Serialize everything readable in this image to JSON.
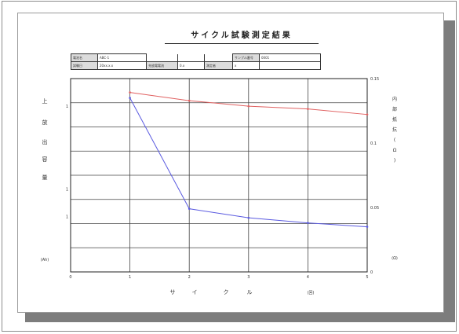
{
  "report": {
    "title": "サイクル試験測定結果",
    "info": {
      "row1": {
        "k1": "電池名",
        "v1": "ABC-1",
        "k2": "サンプル番号",
        "v2": "0001"
      },
      "row2": {
        "k1": "試験日",
        "v1": "20xx.x.x",
        "k2": "充放電電流",
        "v2": "0.x",
        "k3": "測定者",
        "v3": "x"
      }
    }
  },
  "chart_data": {
    "type": "line",
    "x": [
      1,
      2,
      3,
      4,
      5
    ],
    "xlim": [
      0,
      5
    ],
    "xticks": [
      "0",
      "1",
      "2",
      "3",
      "4",
      "5"
    ],
    "xlabel_chars": [
      "サ",
      "イ",
      "ク",
      "ル"
    ],
    "xlabel_extra": "(回)",
    "ylim_left": [
      10,
      17
    ],
    "ylim_right": [
      0,
      0.15
    ],
    "ylabel_left_chars": [
      "上",
      "放",
      "出",
      "容",
      "量"
    ],
    "ylabel_left_unit": "(Ah)",
    "ylabel_right_chars": [
      "内",
      "部",
      "抵",
      "抗",
      "(",
      "Ω",
      ")"
    ],
    "ylabel_right_unit": "(Ω)",
    "left_ticks": [
      {
        "value": 16,
        "label": "1"
      },
      {
        "value": 13,
        "label": "1"
      },
      {
        "value": 12,
        "label": "1"
      }
    ],
    "right_ticks": [
      {
        "value": 0.15,
        "label": "0.15"
      },
      {
        "value": 0.1,
        "label": "0.1"
      },
      {
        "value": 0.05,
        "label": "0.05"
      },
      {
        "value": 0.0,
        "label": "0"
      }
    ],
    "grid": true,
    "series": [
      {
        "values": [
          16.5,
          16.2,
          16.0,
          15.9,
          15.7
        ],
        "axis": "left",
        "color": "#e06060"
      },
      {
        "values": [
          0.135,
          0.049,
          0.042,
          0.038,
          0.035
        ],
        "axis": "right",
        "color": "#5a5ae0"
      }
    ]
  }
}
